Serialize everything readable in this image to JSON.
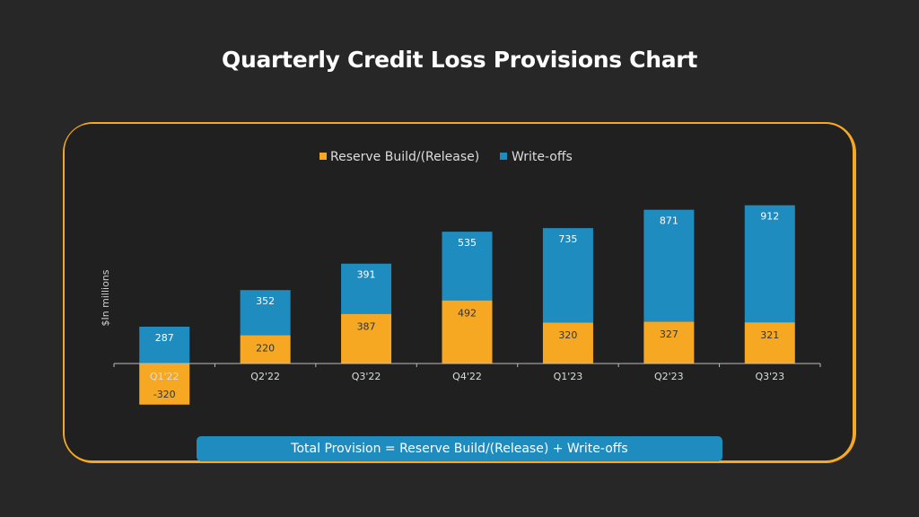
{
  "title": "Quarterly Credit Loss Provisions Chart",
  "footer": "Total Provision = Reserve Build/(Release) + Write-offs",
  "colors": {
    "background": "#272727",
    "panel": "#202020",
    "accent": "#f7a823",
    "reserve": "#f7a823",
    "writeoffs": "#1f8cbf",
    "text": "#ffffff"
  },
  "chart_data": {
    "type": "bar",
    "stacked": true,
    "title": "",
    "xlabel": "",
    "ylabel": "$In millions",
    "categories": [
      "Q1'22",
      "Q2'22",
      "Q3'22",
      "Q4'22",
      "Q1'23",
      "Q2'23",
      "Q3'23"
    ],
    "series": [
      {
        "name": "Reserve Build/(Release)",
        "color": "#f7a823",
        "values": [
          -320,
          220,
          387,
          492,
          320,
          327,
          321
        ]
      },
      {
        "name": "Write-offs",
        "color": "#1f8cbf",
        "values": [
          287,
          352,
          391,
          535,
          735,
          871,
          912
        ]
      }
    ],
    "legend": "top-center",
    "grid": false,
    "ylim": [
      -400,
      1300
    ]
  }
}
